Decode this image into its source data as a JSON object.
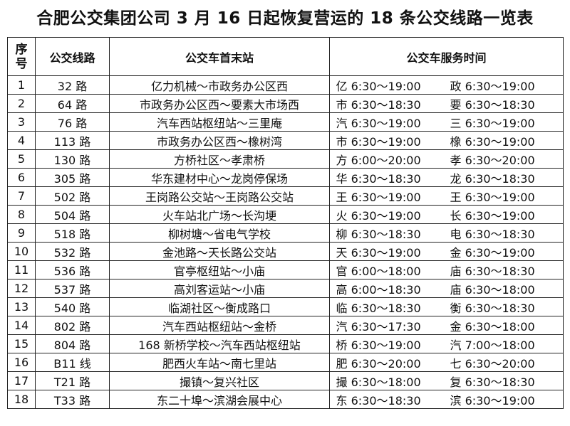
{
  "title": "合肥公交集团公司 3 月 16 日起恢复营运的 18 条公交线路一览表",
  "headers": {
    "index": "序号",
    "route": "公交线路",
    "stations": "公交车首末站",
    "service_time": "公交车服务时间"
  },
  "rows": [
    {
      "index": "1",
      "route": "32 路",
      "stations": "亿力机械～市政务办公区西",
      "time_a": "亿 6:30～19:00",
      "time_b": "政 6:30～19:00"
    },
    {
      "index": "2",
      "route": "64 路",
      "stations": "市政务办公区西～要素大市场西",
      "time_a": "市 6:30～18:30",
      "time_b": "要 6:30～18:30"
    },
    {
      "index": "3",
      "route": "76 路",
      "stations": "汽车西站枢纽站～三里庵",
      "time_a": "汽 6:30～19:00",
      "time_b": "三 6:30～19:00"
    },
    {
      "index": "4",
      "route": "113 路",
      "stations": "市政务办公区西～橡树湾",
      "time_a": "市 6:30～19:00",
      "time_b": "橡 6:30～19:00"
    },
    {
      "index": "5",
      "route": "130 路",
      "stations": "方桥社区～孝肃桥",
      "time_a": "方 6:00～20:00",
      "time_b": "孝 6:30～20:00"
    },
    {
      "index": "6",
      "route": "305 路",
      "stations": "华东建材中心～龙岗停保场",
      "time_a": "华 6:30～18:30",
      "time_b": "龙 6:30～18:30"
    },
    {
      "index": "7",
      "route": "502 路",
      "stations": "王岗路公交站～王岗路公交站",
      "time_a": "王 6:30～19:00",
      "time_b": "王 6:30～19:00"
    },
    {
      "index": "8",
      "route": "504 路",
      "stations": "火车站北广场～长沟埂",
      "time_a": "火 6:30～19:00",
      "time_b": "长 6:30～19:00"
    },
    {
      "index": "9",
      "route": "518 路",
      "stations": "柳树塘～省电气学校",
      "time_a": "柳 6:30～18:30",
      "time_b": "电 6:30～18:30"
    },
    {
      "index": "10",
      "route": "532 路",
      "stations": "金池路～天长路公交站",
      "time_a": "天 6:30～19:00",
      "time_b": "金 6:30～19:00"
    },
    {
      "index": "11",
      "route": "536 路",
      "stations": "官亭枢纽站～小庙",
      "time_a": "官 6:00～18:00",
      "time_b": "庙 6:30～18:30"
    },
    {
      "index": "12",
      "route": "537 路",
      "stations": "高刘客运站～小庙",
      "time_a": "高 6:00～18:30",
      "time_b": "庙 6:30～18:00"
    },
    {
      "index": "13",
      "route": "540 路",
      "stations": "临湖社区～衡成路口",
      "time_a": "临 6:30～18:30",
      "time_b": "衡 6:30～18:30"
    },
    {
      "index": "14",
      "route": "802 路",
      "stations": "汽车西站枢纽站～金桥",
      "time_a": "汽 6:30～17:30",
      "time_b": "金 6:30～18:00"
    },
    {
      "index": "15",
      "route": "804 路",
      "stations": "168 新桥学校～汽车西站枢纽站",
      "time_a": "桥 6:30～19:00",
      "time_b": "汽 7:00～18:00"
    },
    {
      "index": "16",
      "route": "B11 线",
      "stations": "肥西火车站～南七里站",
      "time_a": "肥 6:30～20:00",
      "time_b": "七 6:30～20:00"
    },
    {
      "index": "17",
      "route": "T21 路",
      "stations": "撮镇～复兴社区",
      "time_a": "撮 6:30～18:00",
      "time_b": "复 6:30～18:30"
    },
    {
      "index": "18",
      "route": "T33 路",
      "stations": "东二十埠～滨湖会展中心",
      "time_a": "东 6:30～18:30",
      "time_b": "滨 6:30～19:00"
    }
  ]
}
